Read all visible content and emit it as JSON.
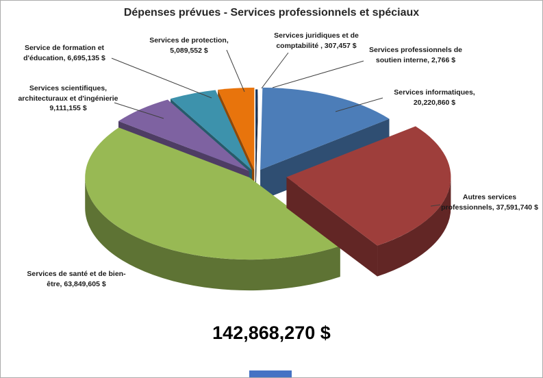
{
  "window": {
    "background": "#FFFFFF",
    "border_color": "#ABABAB"
  },
  "chart_data": {
    "type": "pie",
    "style": "3d-exploded",
    "title": "Dépenses prévues - Services professionnels et spéciaux",
    "total_label": "142,868,270 $",
    "total_value": 142868270,
    "start_angle_deg": 0,
    "direction": "clockwise",
    "legend_position": "none",
    "slices": [
      {
        "name": "Services juridiques et de comptabilité",
        "value": 307457,
        "label": "Services juridiques et de\ncomptabilité , 307,457 $",
        "color": "#17375E",
        "explode": 9
      },
      {
        "name": "Services professionnels de soutien interne",
        "value": 2766,
        "label": "Services professionnels de\nsoutien interne, 2,766 $",
        "color": "#943634",
        "explode": 9
      },
      {
        "name": "Services informatiques",
        "value": 20220860,
        "label": "Services informatiques,\n20,220,860 $",
        "color": "#4C7DB8",
        "explode": 16
      },
      {
        "name": "Autres services professionnels",
        "value": 37591740,
        "label": "Autres services\nprofessionnels, 37,591,740 $",
        "color": "#9E3E3B",
        "explode": 46
      },
      {
        "name": "Services de santé et de bien-être",
        "value": 63849605,
        "label": "Services de santé et de bien-\nêtre, 63,849,605 $",
        "color": "#98B954",
        "explode": 12
      },
      {
        "name": "Services scientifiques, architecturaux et d'ingénierie",
        "value": 9111155,
        "label": "Services scientifiques,\narchitecturaux et d'ingénierie\n9,111,155 $",
        "color": "#7E62A1",
        "explode": 14
      },
      {
        "name": "Service de formation et d'éducation",
        "value": 6695135,
        "label": "Service de formation et\nd'éducation, 6,695,135 $",
        "color": "#3D92AC",
        "explode": 14
      },
      {
        "name": "Services de protection",
        "value": 5089552,
        "label": "Services de protection,\n5,089,552 $",
        "color": "#E8740C",
        "explode": 14
      }
    ]
  },
  "footer": {
    "tab_color": "#4472C4"
  }
}
